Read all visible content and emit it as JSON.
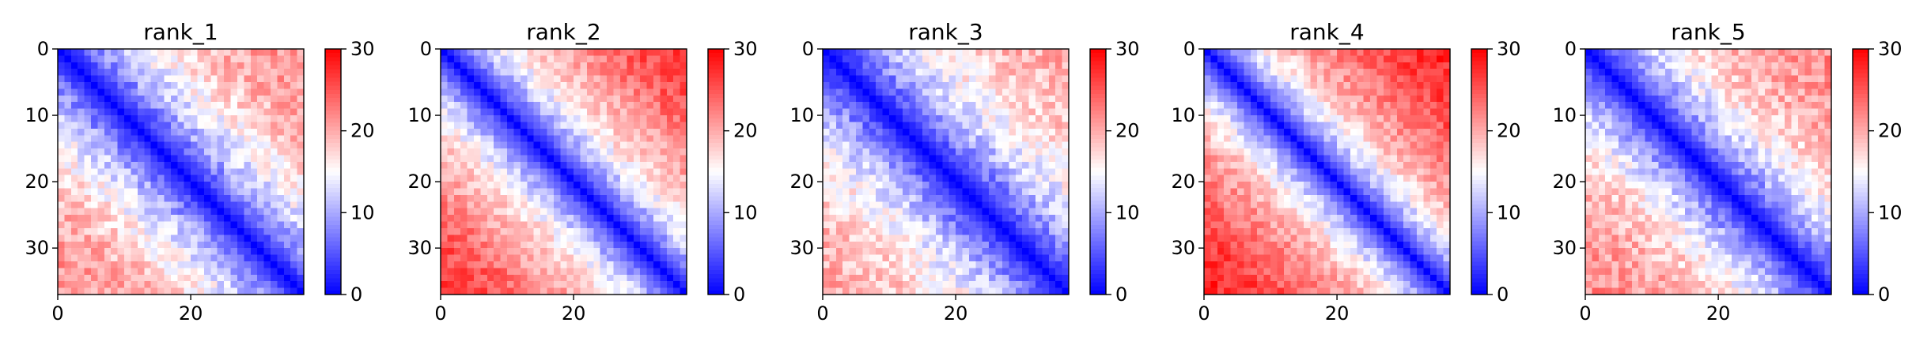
{
  "figure": {
    "colormap": "bwr",
    "colors": {
      "low": "#0000ff",
      "mid": "#ffffff",
      "high": "#ff0000",
      "axis": "#000000"
    }
  },
  "chart_data": [
    {
      "type": "heatmap",
      "title": "rank_1",
      "matrix_size": 37,
      "xlim": [
        0,
        37
      ],
      "ylim": [
        37,
        0
      ],
      "x_ticks": [
        0,
        20
      ],
      "y_ticks": [
        0,
        10,
        20,
        30
      ],
      "colorbar": {
        "range": [
          0,
          30
        ],
        "ticks": [
          0,
          10,
          20,
          30
        ]
      },
      "pattern": {
        "near_diagonal_value": 0,
        "distance_scale": 13,
        "far_value": 23,
        "noise": 3.0,
        "seed": 11,
        "row_band": [],
        "corner_value": null
      },
      "xlabel": "",
      "ylabel": ""
    },
    {
      "type": "heatmap",
      "title": "rank_2",
      "matrix_size": 37,
      "xlim": [
        0,
        37
      ],
      "ylim": [
        37,
        0
      ],
      "x_ticks": [
        0,
        20
      ],
      "y_ticks": [
        0,
        10,
        20,
        30
      ],
      "colorbar": {
        "range": [
          0,
          30
        ],
        "ticks": [
          0,
          10,
          20,
          30
        ]
      },
      "pattern": {
        "near_diagonal_value": 0,
        "distance_scale": 11,
        "far_value": 25,
        "noise": 2.5,
        "seed": 23,
        "row_band": [],
        "corner_value": 27
      },
      "xlabel": "",
      "ylabel": ""
    },
    {
      "type": "heatmap",
      "title": "rank_3",
      "matrix_size": 37,
      "xlim": [
        0,
        37
      ],
      "ylim": [
        37,
        0
      ],
      "x_ticks": [
        0,
        20
      ],
      "y_ticks": [
        0,
        10,
        20,
        30
      ],
      "colorbar": {
        "range": [
          0,
          30
        ],
        "ticks": [
          0,
          10,
          20,
          30
        ]
      },
      "pattern": {
        "near_diagonal_value": 0,
        "distance_scale": 14,
        "far_value": 22,
        "noise": 3.0,
        "seed": 37,
        "row_band": [],
        "corner_value": null
      },
      "xlabel": "",
      "ylabel": ""
    },
    {
      "type": "heatmap",
      "title": "rank_4",
      "matrix_size": 37,
      "xlim": [
        0,
        37
      ],
      "ylim": [
        37,
        0
      ],
      "x_ticks": [
        0,
        20
      ],
      "y_ticks": [
        0,
        10,
        20,
        30
      ],
      "colorbar": {
        "range": [
          0,
          30
        ],
        "ticks": [
          0,
          10,
          20,
          30
        ]
      },
      "pattern": {
        "near_diagonal_value": 0,
        "distance_scale": 10,
        "far_value": 26,
        "noise": 2.5,
        "seed": 41,
        "row_band": [],
        "corner_value": 28
      },
      "xlabel": "",
      "ylabel": ""
    },
    {
      "type": "heatmap",
      "title": "rank_5",
      "matrix_size": 37,
      "xlim": [
        0,
        37
      ],
      "ylim": [
        37,
        0
      ],
      "x_ticks": [
        0,
        20
      ],
      "y_ticks": [
        0,
        10,
        20,
        30
      ],
      "colorbar": {
        "range": [
          0,
          30
        ],
        "ticks": [
          0,
          10,
          20,
          30
        ]
      },
      "pattern": {
        "near_diagonal_value": 0,
        "distance_scale": 12,
        "far_value": 23,
        "noise": 3.0,
        "seed": 53,
        "row_band": [],
        "corner_value": null
      },
      "xlabel": "",
      "ylabel": ""
    }
  ]
}
